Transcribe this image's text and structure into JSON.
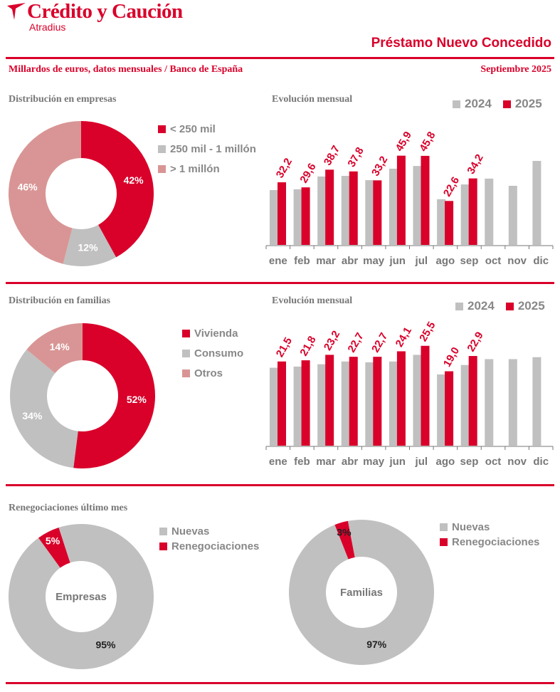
{
  "header": {
    "brand": "Crédito y Caución",
    "brand_sub": "Atradius",
    "title": "Préstamo Nuevo Concedido",
    "subtitle": "Millardos de euros, datos mensuales / Banco de España",
    "date": "Septiembre 2025"
  },
  "colors": {
    "red": "#d9002a",
    "gray": "#c0c0c0",
    "pink": "#d99595"
  },
  "chart_data": [
    {
      "type": "pie",
      "donut": true,
      "title": "Distribución en empresas",
      "labels": [
        "< 250 mil",
        "250 mil - 1 millón",
        "> 1 millón"
      ],
      "values": [
        42,
        12,
        46
      ],
      "value_labels": [
        "42%",
        "12%",
        "46%"
      ],
      "colors": [
        "#d9002a",
        "#c0c0c0",
        "#d99595"
      ]
    },
    {
      "type": "bar",
      "title": "Evolución mensual",
      "categories": [
        "ene",
        "feb",
        "mar",
        "abr",
        "may",
        "jun",
        "jul",
        "ago",
        "sep",
        "oct",
        "nov",
        "dic"
      ],
      "series": [
        {
          "name": "2024",
          "color": "#c0c0c0",
          "values": [
            28.2,
            28.6,
            35.2,
            35.5,
            33.3,
            39.2,
            40.6,
            23.5,
            31.1,
            34.1,
            30.4,
            43.2
          ]
        },
        {
          "name": "2025",
          "color": "#d9002a",
          "values": [
            32.2,
            29.6,
            38.7,
            37.8,
            33.2,
            45.9,
            45.8,
            22.6,
            34.2,
            null,
            null,
            null
          ],
          "data_labels": [
            "32,2",
            "29,6",
            "38,7",
            "37,8",
            "33,2",
            "45,9",
            "45,8",
            "22,6",
            "34,2"
          ]
        }
      ],
      "ylim": [
        0,
        52
      ],
      "legend": "top-right",
      "grid": false
    },
    {
      "type": "pie",
      "donut": true,
      "title": "Distribución en familias",
      "labels": [
        "Vivienda",
        "Consumo",
        "Otros"
      ],
      "values": [
        52,
        34,
        14
      ],
      "value_labels": [
        "52%",
        "34%",
        "14%"
      ],
      "colors": [
        "#d9002a",
        "#c0c0c0",
        "#d99595"
      ]
    },
    {
      "type": "bar",
      "title": "Evolución mensual",
      "categories": [
        "ene",
        "feb",
        "mar",
        "abr",
        "may",
        "jun",
        "jul",
        "ago",
        "sep",
        "oct",
        "nov",
        "dic"
      ],
      "series": [
        {
          "name": "2024",
          "color": "#c0c0c0",
          "values": [
            19.9,
            20.2,
            20.8,
            21.5,
            21.3,
            21.5,
            23.2,
            18.2,
            20.6,
            22.1,
            22.1,
            22.6
          ]
        },
        {
          "name": "2025",
          "color": "#d9002a",
          "values": [
            21.5,
            21.8,
            23.2,
            22.7,
            22.7,
            24.1,
            25.5,
            19.0,
            22.9,
            null,
            null,
            null
          ],
          "data_labels": [
            "21,5",
            "21,8",
            "23,2",
            "22,7",
            "22,7",
            "24,1",
            "25,5",
            "19,0",
            "22,9"
          ]
        }
      ],
      "ylim": [
        0,
        32
      ],
      "legend": "top-right",
      "grid": false
    },
    {
      "type": "pie",
      "donut": true,
      "title": "Renegociaciones último mes",
      "center_label": "Empresas",
      "labels": [
        "Nuevas",
        "Renegociaciones"
      ],
      "values": [
        95,
        5
      ],
      "value_labels": [
        "95%",
        "5%"
      ],
      "colors": [
        "#c0c0c0",
        "#d9002a"
      ]
    },
    {
      "type": "pie",
      "donut": true,
      "center_label": "Familias",
      "labels": [
        "Nuevas",
        "Renegociaciones"
      ],
      "values": [
        97,
        3
      ],
      "value_labels": [
        "97%",
        "3%"
      ],
      "colors": [
        "#c0c0c0",
        "#d9002a"
      ]
    }
  ]
}
